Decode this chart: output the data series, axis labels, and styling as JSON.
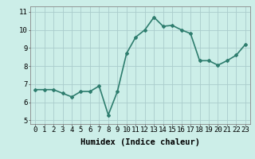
{
  "x": [
    0,
    1,
    2,
    3,
    4,
    5,
    6,
    7,
    8,
    9,
    10,
    11,
    12,
    13,
    14,
    15,
    16,
    17,
    18,
    19,
    20,
    21,
    22,
    23
  ],
  "y": [
    6.7,
    6.7,
    6.7,
    6.5,
    6.3,
    6.6,
    6.6,
    6.9,
    5.3,
    6.6,
    8.7,
    9.6,
    10.0,
    10.7,
    10.2,
    10.25,
    10.0,
    9.8,
    8.3,
    8.3,
    8.05,
    8.3,
    8.6,
    9.2
  ],
  "line_color": "#2e7d6e",
  "marker": "D",
  "marker_size": 2.0,
  "bg_color": "#cceee8",
  "grid_color": "#aacccc",
  "xlabel": "Humidex (Indice chaleur)",
  "xlim": [
    -0.5,
    23.5
  ],
  "ylim": [
    4.8,
    11.3
  ],
  "yticks": [
    5,
    6,
    7,
    8,
    9,
    10,
    11
  ],
  "xticks": [
    0,
    1,
    2,
    3,
    4,
    5,
    6,
    7,
    8,
    9,
    10,
    11,
    12,
    13,
    14,
    15,
    16,
    17,
    18,
    19,
    20,
    21,
    22,
    23
  ],
  "xlabel_fontsize": 7.5,
  "tick_fontsize": 6.5,
  "line_width": 1.2
}
